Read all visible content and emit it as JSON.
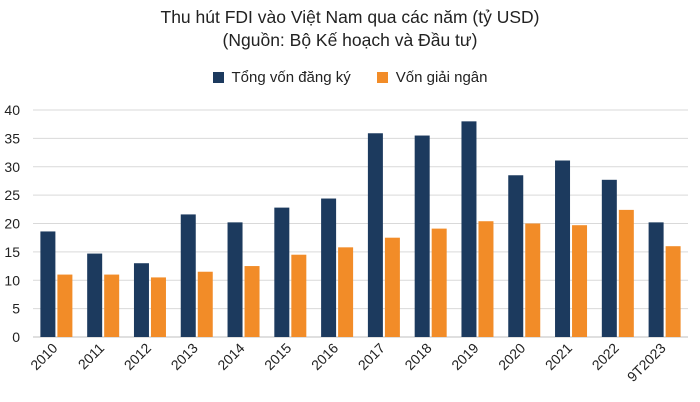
{
  "chart_data": {
    "type": "bar",
    "title": "Thu hút FDI vào Việt Nam qua các năm (tỷ USD)",
    "subtitle": "(Nguồn: Bộ Kế hoạch và Đầu tư)",
    "categories": [
      "2010",
      "2011",
      "2012",
      "2013",
      "2014",
      "2015",
      "2016",
      "2017",
      "2018",
      "2019",
      "2020",
      "2021",
      "2022",
      "9T2023"
    ],
    "series": [
      {
        "name": "Tổng vốn đăng ký",
        "color": "#1c3a5e",
        "values": [
          18.6,
          14.7,
          13.0,
          21.6,
          20.2,
          22.8,
          24.4,
          35.9,
          35.5,
          38.0,
          28.5,
          31.1,
          27.7,
          20.2
        ]
      },
      {
        "name": "Vốn giải ngân",
        "color": "#f28c28",
        "values": [
          11.0,
          11.0,
          10.5,
          11.5,
          12.5,
          14.5,
          15.8,
          17.5,
          19.1,
          20.4,
          20.0,
          19.7,
          22.4,
          16.0
        ]
      }
    ],
    "ylim": [
      0,
      40
    ],
    "yticks": [
      0,
      5,
      10,
      15,
      20,
      25,
      30,
      35,
      40
    ],
    "grid": true,
    "legend_position": "top-center",
    "xlabel": "",
    "ylabel": ""
  }
}
